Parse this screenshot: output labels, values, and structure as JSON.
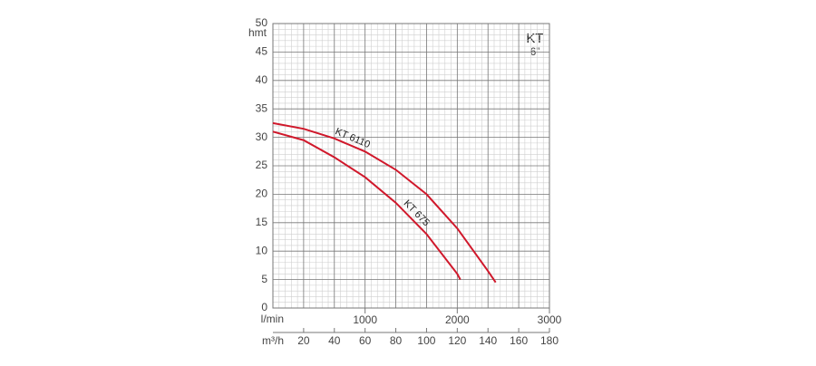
{
  "chart_data": {
    "type": "line",
    "ylabel": "hmt",
    "xlabel": "m³/h",
    "x2label": "l/min",
    "annotations": [
      "KT",
      "6”"
    ],
    "xlim": [
      0,
      180
    ],
    "xticks": [
      20,
      40,
      60,
      80,
      100,
      120,
      140,
      160,
      180
    ],
    "x2lim": [
      0,
      3000
    ],
    "x2ticks": [
      1000,
      2000,
      3000
    ],
    "ylim": [
      0,
      50
    ],
    "yticks": [
      0,
      5,
      10,
      15,
      20,
      25,
      30,
      35,
      40,
      45,
      50
    ],
    "grid": true,
    "series": [
      {
        "name": "KT 6110",
        "color": "#d0182b",
        "x": [
          0,
          20,
          40,
          60,
          80,
          100,
          120,
          140,
          145
        ],
        "values": [
          32.5,
          31.5,
          29.8,
          27.5,
          24.3,
          20,
          14,
          6.5,
          4.5
        ]
      },
      {
        "name": "KT 675",
        "color": "#d0182b",
        "x": [
          0,
          20,
          40,
          60,
          80,
          100,
          120,
          122
        ],
        "values": [
          31,
          29.5,
          26.5,
          23,
          18.5,
          13,
          6,
          5
        ]
      }
    ]
  }
}
